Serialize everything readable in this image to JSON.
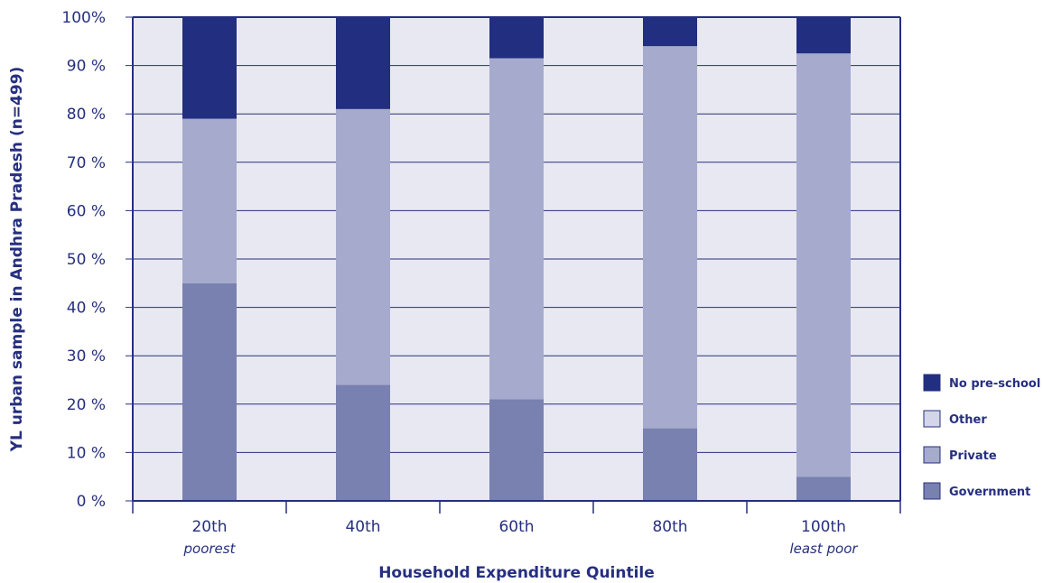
{
  "colors": {
    "plot_bg": "#e8e8f2",
    "axis": "#262f7f",
    "text": "#262f7f",
    "gridline": "#262f7f"
  },
  "chart_data": {
    "type": "bar",
    "stacked": true,
    "categories": [
      "20th",
      "40th",
      "60th",
      "80th",
      "100th"
    ],
    "category_sublabels": [
      "poorest",
      "",
      "",
      "",
      "least poor"
    ],
    "series": [
      {
        "name": "Government",
        "color": "#7981b0",
        "values": [
          45,
          24,
          21,
          15,
          5
        ]
      },
      {
        "name": "Private",
        "color": "#a6abcd",
        "values": [
          34,
          57,
          70.5,
          79,
          87.5
        ]
      },
      {
        "name": "Other",
        "color": "#d3d5e8",
        "values": [
          0,
          0,
          0,
          0,
          0
        ]
      },
      {
        "name": "No pre-school",
        "color": "#222e80",
        "values": [
          21,
          19,
          8.5,
          6,
          7.5
        ]
      }
    ],
    "legend_order": [
      "No pre-school",
      "Other",
      "Private",
      "Government"
    ],
    "legend_position": "right",
    "xlabel": "Household Expenditure Quintile",
    "ylabel": "YL urban sample in Andhra Pradesh (n=499)",
    "ylim": [
      0,
      100
    ],
    "yticks": [
      0,
      10,
      20,
      30,
      40,
      50,
      60,
      70,
      80,
      90,
      100
    ],
    "ytick_labels": [
      "0 %",
      "10 %",
      "20 %",
      "30 %",
      "40 %",
      "50 %",
      "60 %",
      "70 %",
      "80 %",
      "90 %",
      "100%"
    ],
    "grid": true
  }
}
